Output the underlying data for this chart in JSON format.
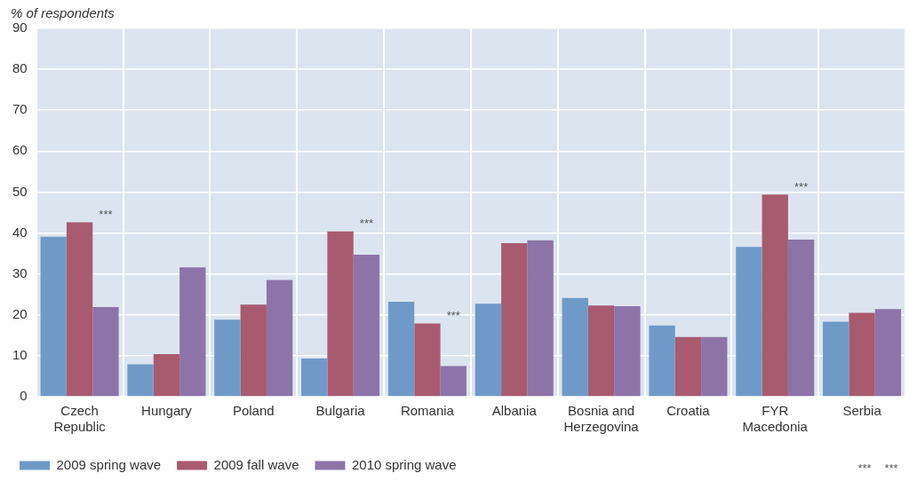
{
  "chart_data": {
    "type": "bar",
    "ylabel": "% of respondents",
    "categories": [
      "Czech\nRepublic",
      "Hungary",
      "Poland",
      "Bulgaria",
      "Romania",
      "Albania",
      "Bosnia and\nHerzegovina",
      "Croatia",
      "FYR\nMacedonia",
      "Serbia"
    ],
    "series": [
      {
        "name": "2009 spring wave",
        "color": "#6f9ac8",
        "values": [
          39.1,
          7.9,
          18.8,
          9.3,
          23.2,
          22.7,
          24.1,
          17.4,
          36.6,
          18.3
        ]
      },
      {
        "name": "2009 fall wave",
        "color": "#a85b6f",
        "values": [
          42.6,
          10.4,
          22.5,
          40.4,
          17.9,
          37.5,
          22.3,
          14.6,
          49.4,
          20.5
        ]
      },
      {
        "name": "2010 spring wave",
        "color": "#8c74a8",
        "values": [
          21.9,
          31.6,
          28.5,
          34.7,
          7.5,
          38.2,
          22.1,
          14.6,
          38.4,
          21.4
        ]
      }
    ],
    "ylim": [
      0,
      90
    ],
    "yticks": [
      0,
      10,
      20,
      30,
      40,
      50,
      60,
      70,
      80,
      90
    ],
    "grid": true,
    "legend": "bottom left",
    "annotations": [
      {
        "text": "***",
        "x": "Czech\nRepublic",
        "y": 42.6
      },
      "***",
      "***",
      {
        "text": "***",
        "x": "Bulgaria",
        "y": 40.4
      },
      {
        "text": "***",
        "x": "Romania",
        "y": 17.9
      },
      {
        "text": "***",
        "x": "FYR\nMacedonia",
        "y": 49.4
      }
    ]
  }
}
